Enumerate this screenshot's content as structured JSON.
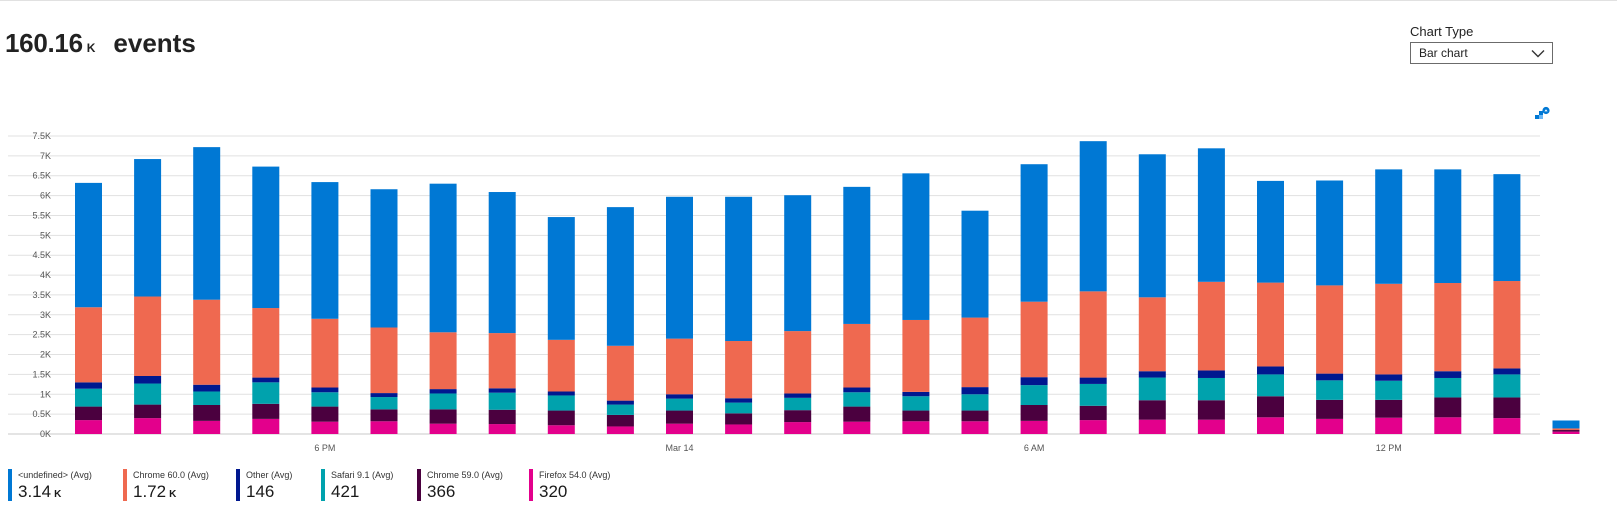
{
  "summary": {
    "total_value": "160.16",
    "total_unit": "K",
    "metric_label": "events"
  },
  "chart_type_control": {
    "label": "Chart Type",
    "selected": "Bar chart"
  },
  "icons": {
    "pin": "pin-to-dashboard-icon",
    "dropdown": "chevron-down-icon"
  },
  "legend": [
    {
      "name": "<undefined> (Avg)",
      "value": "3.14",
      "unit": "K",
      "color": "#0078d4"
    },
    {
      "name": "Chrome 60.0 (Avg)",
      "value": "1.72",
      "unit": "K",
      "color": "#ef6950"
    },
    {
      "name": "Other (Avg)",
      "value": "146",
      "unit": "",
      "color": "#00188f"
    },
    {
      "name": "Safari 9.1 (Avg)",
      "value": "421",
      "unit": "",
      "color": "#00a2ad"
    },
    {
      "name": "Chrome 59.0 (Avg)",
      "value": "366",
      "unit": "",
      "color": "#4b003f"
    },
    {
      "name": "Firefox 54.0 (Avg)",
      "value": "320",
      "unit": "",
      "color": "#e3008c"
    }
  ],
  "chart_data": {
    "type": "bar",
    "stacked": true,
    "grid": true,
    "ylim": [
      0,
      7500
    ],
    "yticks": [
      0,
      500,
      1000,
      1500,
      2000,
      2500,
      3000,
      3500,
      4000,
      4500,
      5000,
      5500,
      6000,
      6500,
      7000,
      7500
    ],
    "ytick_labels": [
      "0K",
      "0.5K",
      "1K",
      "1.5K",
      "2K",
      "2.5K",
      "3K",
      "3.5K",
      "4K",
      "4.5K",
      "5K",
      "5.5K",
      "6K",
      "6.5K",
      "7K",
      "7.5K"
    ],
    "x_tick_labels": [
      {
        "bar_index": 4,
        "label": "6 PM"
      },
      {
        "bar_index": 10,
        "label": "Mar 14"
      },
      {
        "bar_index": 16,
        "label": "6 AM"
      },
      {
        "bar_index": 22,
        "label": "12 PM"
      }
    ],
    "bar_count": 26,
    "series": [
      {
        "name": "Firefox 54.0 (Avg)",
        "color": "#e3008c",
        "values": [
          350,
          400,
          330,
          380,
          310,
          320,
          260,
          250,
          220,
          190,
          260,
          240,
          300,
          310,
          320,
          320,
          330,
          350,
          360,
          360,
          420,
          380,
          410,
          420,
          400,
          60
        ]
      },
      {
        "name": "Chrome 59.0 (Avg)",
        "color": "#4b003f",
        "values": [
          340,
          340,
          400,
          380,
          380,
          300,
          360,
          360,
          370,
          290,
          330,
          280,
          300,
          380,
          270,
          270,
          400,
          360,
          490,
          490,
          530,
          480,
          450,
          500,
          520,
          40
        ]
      },
      {
        "name": "Safari 9.1 (Avg)",
        "color": "#00a2ad",
        "values": [
          450,
          530,
          340,
          540,
          360,
          310,
          400,
          430,
          380,
          260,
          300,
          270,
          310,
          360,
          360,
          410,
          500,
          550,
          570,
          560,
          550,
          490,
          480,
          490,
          580,
          0
        ]
      },
      {
        "name": "Other (Avg)",
        "color": "#00188f",
        "values": [
          160,
          190,
          170,
          120,
          120,
          100,
          110,
          110,
          100,
          100,
          110,
          110,
          110,
          120,
          110,
          180,
          200,
          160,
          160,
          190,
          200,
          170,
          160,
          170,
          150,
          0
        ]
      },
      {
        "name": "Chrome 60.0 (Avg)",
        "color": "#ef6950",
        "values": [
          1890,
          2000,
          2140,
          1750,
          1730,
          1650,
          1430,
          1390,
          1300,
          1380,
          1400,
          1440,
          1570,
          1600,
          1810,
          1750,
          1900,
          2170,
          1860,
          2230,
          2110,
          2220,
          2280,
          2220,
          2200,
          40
        ]
      },
      {
        "name": "<undefined> (Avg)",
        "color": "#0078d4",
        "values": [
          3130,
          3460,
          3840,
          3560,
          3440,
          3480,
          3740,
          3550,
          3090,
          3490,
          3570,
          3630,
          3420,
          3450,
          3690,
          2690,
          3460,
          3780,
          3600,
          3360,
          2560,
          2640,
          2880,
          2860,
          2690,
          200
        ]
      }
    ]
  }
}
